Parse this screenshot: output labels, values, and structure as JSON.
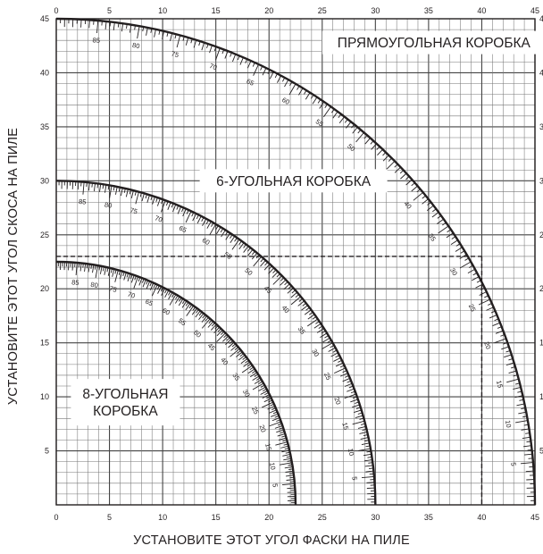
{
  "chart_data": {
    "type": "line",
    "title": "",
    "xlabel": "УСТАНОВИТЕ ЭТОТ УГОЛ ФАСКИ НА ПИЛЕ",
    "ylabel": "УСТАНОВИТЕ ЭТОТ УГОЛ СКОСА НА ПИЛЕ",
    "xlim": [
      0,
      45
    ],
    "ylim": [
      0,
      45
    ],
    "x_ticks": [
      "0",
      "5",
      "10",
      "15",
      "20",
      "25",
      "30",
      "35",
      "40",
      "45"
    ],
    "y_ticks": [
      "0",
      "5",
      "10",
      "15",
      "20",
      "25",
      "30",
      "35",
      "40",
      "45"
    ],
    "grid": true,
    "legend": "none",
    "series": [
      {
        "name": "ПРЯМОУГОЛЬНАЯ КОРОБКА",
        "radius": 45,
        "scale_labels": [
          "85",
          "80",
          "75",
          "70",
          "65",
          "60",
          "55",
          "50",
          "45",
          "40",
          "35",
          "30",
          "25",
          "20",
          "15",
          "10",
          "5"
        ]
      },
      {
        "name": "6-УГОЛЬНАЯ КОРОБКА",
        "radius": 30,
        "scale_labels": [
          "85",
          "80",
          "75",
          "70",
          "65",
          "60",
          "55",
          "50",
          "45",
          "40",
          "35",
          "30",
          "25",
          "20",
          "15",
          "10",
          "5"
        ]
      },
      {
        "name": "8-УГОЛЬНАЯ КОРОБКА",
        "label_lines": [
          "8-УГОЛЬНАЯ",
          "КОРОБКА"
        ],
        "radius": 22.5,
        "scale_labels": [
          "85",
          "80",
          "75",
          "70",
          "65",
          "60",
          "55",
          "50",
          "45",
          "40",
          "35",
          "30",
          "25",
          "20",
          "15",
          "10",
          "5"
        ]
      }
    ],
    "annotations": {
      "dashed_reference": {
        "x": 40,
        "y": 23,
        "on_curve": "ПРЯМОУГОЛЬНАЯ КОРОБКА",
        "scale_value": "25"
      }
    }
  }
}
